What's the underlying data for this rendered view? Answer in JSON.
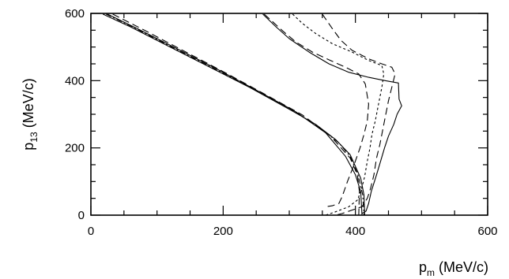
{
  "chart_data": {
    "type": "line",
    "title": "",
    "xlabel": {
      "main": "p",
      "sub": "m",
      "unit": " (MeV/c)"
    },
    "ylabel": {
      "main": "p",
      "sub": "13",
      "unit": " (MeV/c)"
    },
    "xlim": [
      0,
      600
    ],
    "ylim": [
      0,
      600
    ],
    "x_ticks": [
      0,
      200,
      400,
      600
    ],
    "y_ticks": [
      0,
      200,
      400,
      600
    ],
    "x_tick_labels": [
      "0",
      "200",
      "400",
      "600"
    ],
    "y_tick_labels": [
      "0",
      "200",
      "400",
      "600"
    ],
    "x_minor_step": 50,
    "y_minor_step": 50,
    "grid": false,
    "legend": null,
    "series": [
      {
        "style": "solid",
        "points": [
          [
            18,
            598
          ],
          [
            60,
            560
          ],
          [
            120,
            500
          ],
          [
            180,
            440
          ],
          [
            240,
            380
          ],
          [
            300,
            315
          ],
          [
            340,
            270
          ],
          [
            370,
            225
          ],
          [
            392,
            180
          ],
          [
            408,
            110
          ],
          [
            413,
            60
          ],
          [
            414,
            0
          ]
        ]
      },
      {
        "style": "solid",
        "points": [
          [
            25,
            598
          ],
          [
            70,
            555
          ],
          [
            130,
            495
          ],
          [
            190,
            435
          ],
          [
            250,
            372
          ],
          [
            310,
            307
          ],
          [
            355,
            245
          ],
          [
            385,
            175
          ],
          [
            400,
            120
          ],
          [
            408,
            70
          ],
          [
            410,
            0
          ]
        ]
      },
      {
        "style": "long-dash",
        "points": [
          [
            33,
            598
          ],
          [
            80,
            551
          ],
          [
            140,
            489
          ],
          [
            200,
            427
          ],
          [
            260,
            363
          ],
          [
            320,
            298
          ],
          [
            362,
            236
          ],
          [
            392,
            170
          ],
          [
            403,
            120
          ],
          [
            406,
            70
          ],
          [
            405,
            0
          ]
        ]
      },
      {
        "style": "dot-dash",
        "points": [
          [
            23,
            598
          ],
          [
            65,
            558
          ],
          [
            125,
            497
          ],
          [
            185,
            437
          ],
          [
            245,
            376
          ],
          [
            300,
            318
          ],
          [
            345,
            262
          ],
          [
            375,
            215
          ],
          [
            392,
            175
          ],
          [
            404,
            120
          ],
          [
            411,
            60
          ],
          [
            413,
            0
          ]
        ]
      },
      {
        "style": "solid",
        "points": [
          [
            260,
            598
          ],
          [
            280,
            560
          ],
          [
            300,
            525
          ],
          [
            330,
            485
          ],
          [
            360,
            450
          ],
          [
            390,
            425
          ],
          [
            420,
            410
          ],
          [
            445,
            400
          ],
          [
            465,
            393
          ],
          [
            466,
            345
          ],
          [
            470,
            325
          ],
          [
            463,
            300
          ],
          [
            458,
            270
          ],
          [
            450,
            235
          ],
          [
            444,
            200
          ],
          [
            438,
            160
          ],
          [
            432,
            120
          ],
          [
            424,
            70
          ],
          [
            420,
            35
          ],
          [
            416,
            12
          ],
          [
            410,
            5
          ]
        ]
      },
      {
        "style": "long-dash",
        "points": [
          [
            350,
            598
          ],
          [
            365,
            555
          ],
          [
            378,
            520
          ],
          [
            395,
            490
          ],
          [
            420,
            465
          ],
          [
            440,
            450
          ],
          [
            455,
            440
          ],
          [
            460,
            420
          ],
          [
            455,
            380
          ],
          [
            450,
            340
          ],
          [
            443,
            270
          ],
          [
            437,
            210
          ],
          [
            432,
            170
          ],
          [
            428,
            120
          ],
          [
            423,
            80
          ],
          [
            418,
            50
          ],
          [
            410,
            25
          ],
          [
            380,
            5
          ],
          [
            370,
            0
          ]
        ]
      },
      {
        "style": "dotted-dash",
        "points": [
          [
            305,
            598
          ],
          [
            320,
            570
          ],
          [
            340,
            540
          ],
          [
            365,
            510
          ],
          [
            395,
            485
          ],
          [
            420,
            460
          ],
          [
            440,
            445
          ],
          [
            443,
            420
          ],
          [
            440,
            380
          ],
          [
            435,
            330
          ],
          [
            430,
            280
          ],
          [
            425,
            240
          ],
          [
            422,
            200
          ],
          [
            418,
            160
          ],
          [
            414,
            115
          ],
          [
            409,
            75
          ],
          [
            403,
            45
          ],
          [
            390,
            25
          ],
          [
            370,
            10
          ],
          [
            355,
            0
          ]
        ]
      },
      {
        "style": "long-dash",
        "points": [
          [
            262,
            598
          ],
          [
            275,
            575
          ],
          [
            290,
            548
          ],
          [
            310,
            515
          ],
          [
            335,
            485
          ],
          [
            360,
            462
          ],
          [
            385,
            440
          ],
          [
            405,
            420
          ],
          [
            415,
            390
          ],
          [
            420,
            330
          ],
          [
            418,
            280
          ],
          [
            413,
            240
          ],
          [
            407,
            200
          ],
          [
            398,
            150
          ],
          [
            388,
            100
          ],
          [
            380,
            55
          ],
          [
            375,
            35
          ],
          [
            365,
            28
          ],
          [
            355,
            25
          ]
        ]
      }
    ]
  }
}
